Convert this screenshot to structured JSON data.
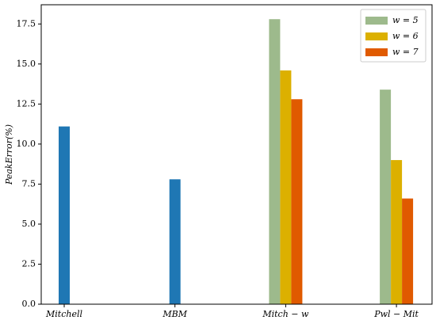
{
  "chart_data": {
    "type": "bar",
    "y_label": "PeakError(%)",
    "categories": [
      "Mitchell",
      "MBM",
      "Mitch − w",
      "Pwl − Mit"
    ],
    "series": [
      {
        "color": "#1f77b4",
        "values": [
          11.1,
          7.8,
          null,
          null
        ]
      },
      {
        "name": "w = 5",
        "color": "#9dba8c",
        "values": [
          null,
          null,
          17.8,
          13.4
        ]
      },
      {
        "name": "w = 6",
        "color": "#dcb000",
        "values": [
          null,
          null,
          14.6,
          9.0
        ]
      },
      {
        "name": "w = 7",
        "color": "#e05a00",
        "values": [
          null,
          null,
          12.8,
          6.6
        ]
      }
    ],
    "ylim": [
      0,
      18.7
    ],
    "yticks": [
      {
        "value": 0,
        "label": "0.0"
      },
      {
        "value": 2.5,
        "label": "2.5"
      },
      {
        "value": 5,
        "label": "5.0"
      },
      {
        "value": 7.5,
        "label": "7.5"
      },
      {
        "value": 10,
        "label": "10.0"
      },
      {
        "value": 12.5,
        "label": "12.5"
      },
      {
        "value": 15,
        "label": "15.0"
      },
      {
        "value": 17.5,
        "label": "17.5"
      }
    ],
    "legend": "upper right"
  }
}
